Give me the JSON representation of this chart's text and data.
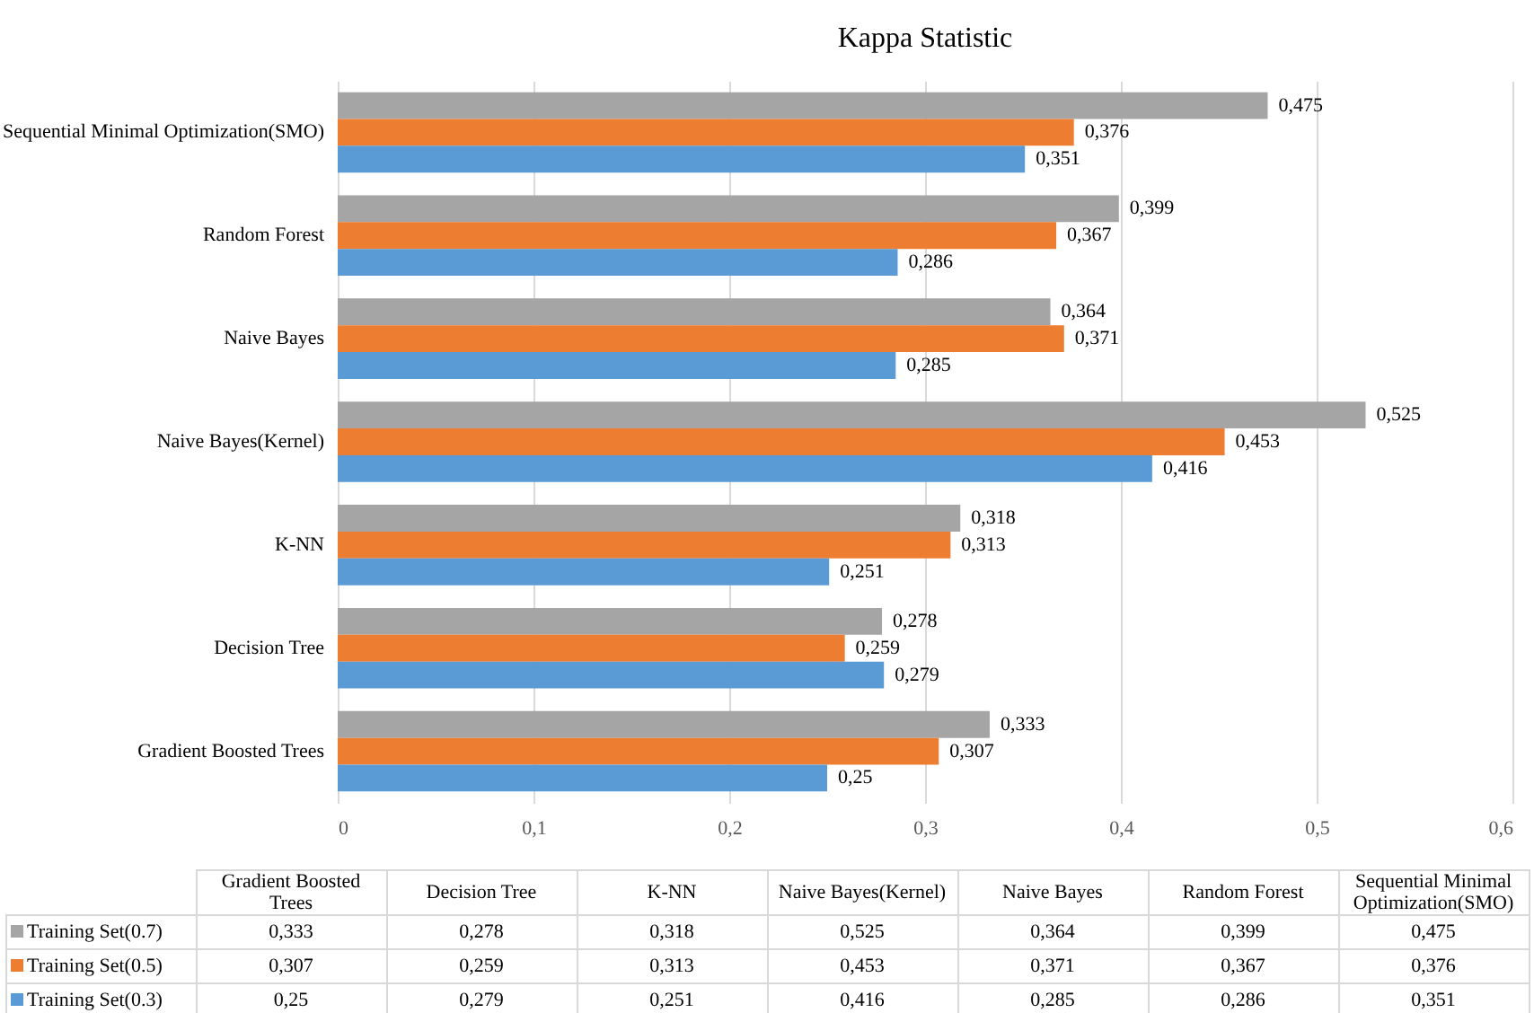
{
  "chart_data": {
    "type": "bar",
    "orientation": "horizontal",
    "title": "Kappa Statistic",
    "categories": [
      "Sequential Minimal Optimization(SMO)",
      "Random Forest",
      "Naive Bayes",
      "Naive Bayes(Kernel)",
      "K-NN",
      "Decision Tree",
      "Gradient Boosted Trees"
    ],
    "series": [
      {
        "name": "Training Set(0.7)",
        "color": "#a5a5a5",
        "values": [
          0.475,
          0.399,
          0.364,
          0.525,
          0.318,
          0.278,
          0.333
        ],
        "value_labels": [
          "0,475",
          "0,399",
          "0,364",
          "0,525",
          "0,318",
          "0,278",
          "0,333"
        ]
      },
      {
        "name": "Training Set(0.5)",
        "color": "#ed7d31",
        "values": [
          0.376,
          0.367,
          0.371,
          0.453,
          0.313,
          0.259,
          0.307
        ],
        "value_labels": [
          "0,376",
          "0,367",
          "0,371",
          "0,453",
          "0,313",
          "0,259",
          "0,307"
        ]
      },
      {
        "name": "Training Set(0.3)",
        "color": "#5b9bd5",
        "values": [
          0.351,
          0.286,
          0.285,
          0.416,
          0.251,
          0.279,
          0.25
        ],
        "value_labels": [
          "0,351",
          "0,286",
          "0,285",
          "0,416",
          "0,251",
          "0,279",
          "0,25"
        ]
      }
    ],
    "xlim": [
      0,
      0.6
    ],
    "xticks": [
      0,
      {
        "value": 0.1,
        "label": "0,1"
      },
      {
        "value": 0.2,
        "label": "0,2"
      },
      {
        "value": 0.3,
        "label": "0,3"
      },
      {
        "value": 0.4,
        "label": "0,4"
      },
      {
        "value": 0.5,
        "label": "0,5"
      },
      {
        "value": 0.6,
        "label": "0,6"
      }
    ],
    "grid": "x",
    "legend": "bottom"
  }
}
